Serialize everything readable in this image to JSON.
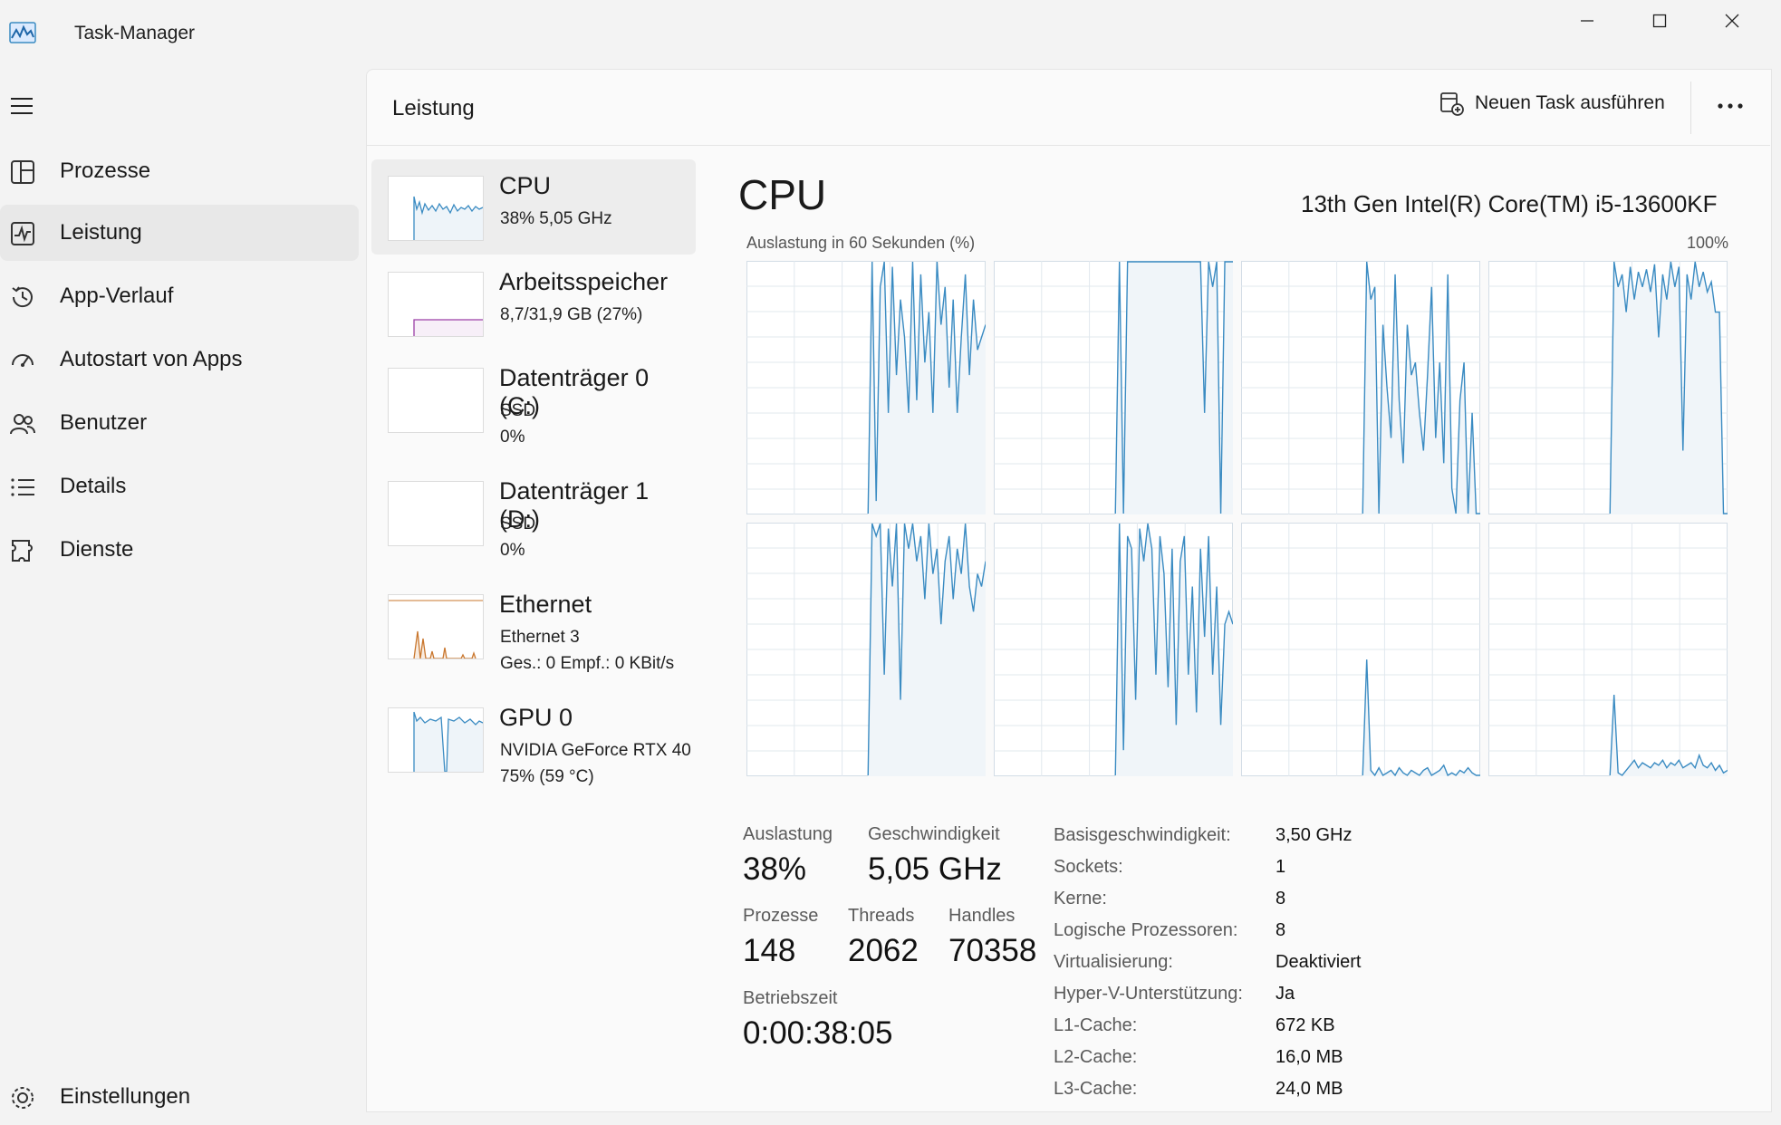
{
  "window": {
    "title": "Task-Manager"
  },
  "nav": {
    "items": [
      {
        "label": "Prozesse",
        "icon": "processes-icon"
      },
      {
        "label": "Leistung",
        "icon": "performance-icon",
        "selected": true
      },
      {
        "label": "App-Verlauf",
        "icon": "history-icon"
      },
      {
        "label": "Autostart von Apps",
        "icon": "startup-icon"
      },
      {
        "label": "Benutzer",
        "icon": "users-icon"
      },
      {
        "label": "Details",
        "icon": "details-icon"
      },
      {
        "label": "Dienste",
        "icon": "services-icon"
      }
    ],
    "settings_label": "Einstellungen"
  },
  "header": {
    "title": "Leistung",
    "new_task_label": "Neuen Task ausführen"
  },
  "sidebar": {
    "items": [
      {
        "title": "CPU",
        "line1": "38%  5,05 GHz",
        "line2": ""
      },
      {
        "title": "Arbeitsspeicher",
        "line1": "8,7/31,9 GB (27%)",
        "line2": ""
      },
      {
        "title": "Datenträger 0 (C:)",
        "line1": "SSD",
        "line2": "0%"
      },
      {
        "title": "Datenträger 1 (D:)",
        "line1": "SSD",
        "line2": "0%"
      },
      {
        "title": "Ethernet",
        "line1": "Ethernet 3",
        "line2": "Ges.: 0  Empf.: 0 KBit/s"
      },
      {
        "title": "GPU 0",
        "line1": "NVIDIA GeForce RTX 40",
        "line2": "75%  (59 °C)"
      }
    ]
  },
  "cpu": {
    "title": "CPU",
    "model": "13th Gen Intel(R) Core(TM) i5-13600KF",
    "graph_caption": "Auslastung in 60 Sekunden (%)",
    "graph_max_label": "100%",
    "stats": {
      "auslastung_label": "Auslastung",
      "auslastung_value": "38%",
      "geschwindigkeit_label": "Geschwindigkeit",
      "geschwindigkeit_value": "5,05 GHz",
      "prozesse_label": "Prozesse",
      "prozesse_value": "148",
      "threads_label": "Threads",
      "threads_value": "2062",
      "handles_label": "Handles",
      "handles_value": "70358",
      "betriebszeit_label": "Betriebszeit",
      "betriebszeit_value": "0:00:38:05"
    },
    "properties": [
      {
        "label": "Basisgeschwindigkeit:",
        "value": "3,50 GHz"
      },
      {
        "label": "Sockets:",
        "value": "1"
      },
      {
        "label": "Kerne:",
        "value": "8"
      },
      {
        "label": "Logische Prozessoren:",
        "value": "8"
      },
      {
        "label": "Virtualisierung:",
        "value": "Deaktiviert"
      },
      {
        "label": "Hyper-V-Unterstützung:",
        "value": "Ja"
      },
      {
        "label": "L1-Cache:",
        "value": "672 KB"
      },
      {
        "label": "L2-Cache:",
        "value": "16,0 MB"
      },
      {
        "label": "L3-Cache:",
        "value": "24,0 MB"
      }
    ]
  },
  "colors": {
    "cpu_line": "#3a8bc2",
    "cpu_fill": "#f0f5f9",
    "memory_line": "#9b3fa6",
    "ethernet_line": "#c9772e",
    "grid": "#e1e8ee"
  },
  "chart_data": {
    "type": "line",
    "title": "Auslastung in 60 Sekunden (%)",
    "ylim": [
      0,
      100
    ],
    "series": [
      {
        "values": [
          0,
          0,
          0,
          0,
          0,
          0,
          0,
          0,
          0,
          0,
          0,
          0,
          0,
          0,
          0,
          0,
          0,
          0,
          0,
          0,
          0,
          0,
          0,
          0,
          0,
          0,
          0,
          0,
          0,
          0,
          0,
          100,
          5,
          90,
          100,
          40,
          98,
          55,
          85,
          70,
          40,
          100,
          45,
          95,
          60,
          80,
          40,
          100,
          75,
          90,
          50,
          85,
          40,
          70,
          95,
          55,
          85,
          65,
          70,
          75
        ]
      },
      {
        "values": [
          0,
          0,
          0,
          0,
          0,
          0,
          0,
          0,
          0,
          0,
          0,
          0,
          0,
          0,
          0,
          0,
          0,
          0,
          0,
          0,
          0,
          0,
          0,
          0,
          0,
          0,
          0,
          0,
          0,
          0,
          0,
          100,
          0,
          100,
          100,
          100,
          100,
          100,
          100,
          100,
          100,
          100,
          100,
          100,
          100,
          100,
          100,
          100,
          100,
          100,
          100,
          100,
          40,
          100,
          90,
          100,
          0,
          100,
          100,
          100
        ]
      },
      {
        "values": [
          0,
          0,
          0,
          0,
          0,
          0,
          0,
          0,
          0,
          0,
          0,
          0,
          0,
          0,
          0,
          0,
          0,
          0,
          0,
          0,
          0,
          0,
          0,
          0,
          0,
          0,
          0,
          0,
          0,
          0,
          0,
          100,
          85,
          90,
          0,
          75,
          50,
          30,
          95,
          45,
          20,
          75,
          55,
          60,
          40,
          25,
          55,
          90,
          30,
          60,
          20,
          95,
          10,
          0,
          45,
          60,
          0,
          40,
          0,
          0
        ]
      },
      {
        "values": [
          0,
          0,
          0,
          0,
          0,
          0,
          0,
          0,
          0,
          0,
          0,
          0,
          0,
          0,
          0,
          0,
          0,
          0,
          0,
          0,
          0,
          0,
          0,
          0,
          0,
          0,
          0,
          0,
          0,
          0,
          0,
          100,
          90,
          95,
          80,
          98,
          85,
          96,
          90,
          97,
          88,
          99,
          70,
          95,
          85,
          100,
          90,
          98,
          25,
          95,
          85,
          100,
          90,
          96,
          88,
          92,
          80,
          80,
          0,
          0
        ]
      },
      {
        "values": [
          0,
          0,
          0,
          0,
          0,
          0,
          0,
          0,
          0,
          0,
          0,
          0,
          0,
          0,
          0,
          0,
          0,
          0,
          0,
          0,
          0,
          0,
          0,
          0,
          0,
          0,
          0,
          0,
          0,
          0,
          0,
          100,
          95,
          100,
          40,
          98,
          75,
          100,
          30,
          100,
          90,
          100,
          85,
          95,
          70,
          100,
          80,
          90,
          60,
          85,
          95,
          70,
          90,
          80,
          100,
          75,
          65,
          80,
          75,
          85
        ]
      },
      {
        "values": [
          0,
          0,
          0,
          0,
          0,
          0,
          0,
          0,
          0,
          0,
          0,
          0,
          0,
          0,
          0,
          0,
          0,
          0,
          0,
          0,
          0,
          0,
          0,
          0,
          0,
          0,
          0,
          0,
          0,
          0,
          0,
          100,
          10,
          95,
          90,
          30,
          98,
          85,
          100,
          90,
          40,
          95,
          80,
          35,
          90,
          20,
          85,
          95,
          40,
          75,
          25,
          90,
          55,
          95,
          40,
          75,
          20,
          60,
          65,
          60
        ]
      },
      {
        "values": [
          0,
          0,
          0,
          0,
          0,
          0,
          0,
          0,
          0,
          0,
          0,
          0,
          0,
          0,
          0,
          0,
          0,
          0,
          0,
          0,
          0,
          0,
          0,
          0,
          0,
          0,
          0,
          0,
          0,
          0,
          0,
          46,
          2,
          0,
          3,
          0,
          1,
          2,
          0,
          3,
          1,
          0,
          2,
          1,
          0,
          2,
          3,
          0,
          1,
          2,
          4,
          0,
          1,
          0,
          2,
          1,
          3,
          1,
          0,
          0
        ]
      },
      {
        "values": [
          0,
          0,
          0,
          0,
          0,
          0,
          0,
          0,
          0,
          0,
          0,
          0,
          0,
          0,
          0,
          0,
          0,
          0,
          0,
          0,
          0,
          0,
          0,
          0,
          0,
          0,
          0,
          0,
          0,
          0,
          0,
          32,
          1,
          0,
          2,
          4,
          6,
          3,
          5,
          4,
          3,
          5,
          4,
          6,
          3,
          5,
          4,
          6,
          3,
          4,
          5,
          3,
          8,
          4,
          3,
          5,
          2,
          4,
          1,
          2
        ]
      }
    ]
  }
}
